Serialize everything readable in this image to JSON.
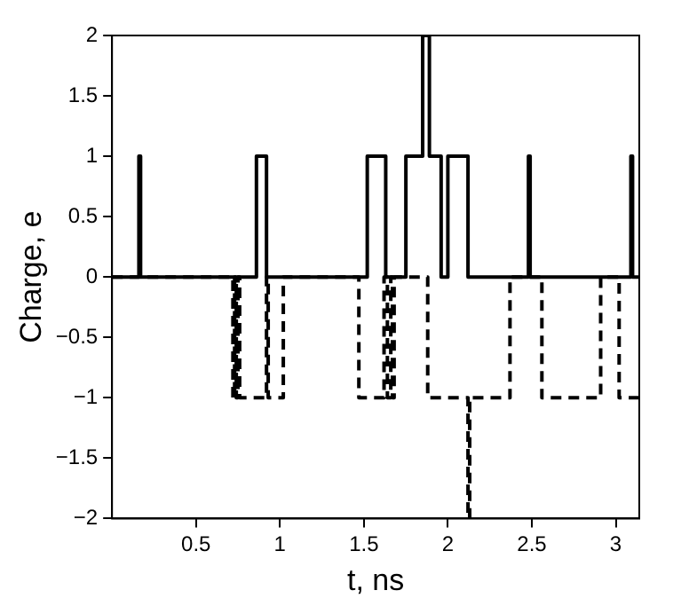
{
  "chart_data": {
    "type": "step",
    "xlabel": "t, ns",
    "ylabel": "Charge, e",
    "xlim": [
      0,
      3.14
    ],
    "xticks": [
      0.5,
      1,
      1.5,
      2,
      2.5,
      3
    ],
    "ylim": [
      -2,
      2
    ],
    "yticks": [
      -2,
      -1.5,
      -1,
      -0.5,
      0,
      0.5,
      1,
      1.5,
      2
    ],
    "grid": false,
    "legend": false,
    "marker": "none",
    "series": [
      {
        "color": "#000000",
        "line_style": "solid",
        "x": [
          0,
          0.16,
          0.17,
          0.86,
          0.92,
          1.52,
          1.63,
          1.75,
          1.85,
          1.89,
          1.96,
          2.0,
          2.12,
          2.48,
          2.49,
          3.09,
          3.1,
          3.14
        ],
        "values": [
          0,
          1,
          0,
          1,
          0,
          1,
          0,
          1,
          2,
          1,
          0,
          1,
          0,
          1,
          0,
          1,
          0,
          0
        ]
      },
      {
        "color": "#000000",
        "line_style": "dashed",
        "x": [
          0,
          0.72,
          0.73,
          0.74,
          0.75,
          0.76,
          0.92,
          0.93,
          1.02,
          1.47,
          1.62,
          1.64,
          1.66,
          1.67,
          1.68,
          1.88,
          2.12,
          2.13,
          2.37,
          2.56,
          2.91,
          3.02,
          3.14
        ],
        "values": [
          0,
          -1,
          0,
          -1,
          0,
          -1,
          0,
          -1,
          0,
          -1,
          0,
          -1,
          0,
          -1,
          0,
          -1,
          -2,
          -1,
          0,
          -1,
          0,
          -1,
          -1
        ]
      }
    ]
  }
}
